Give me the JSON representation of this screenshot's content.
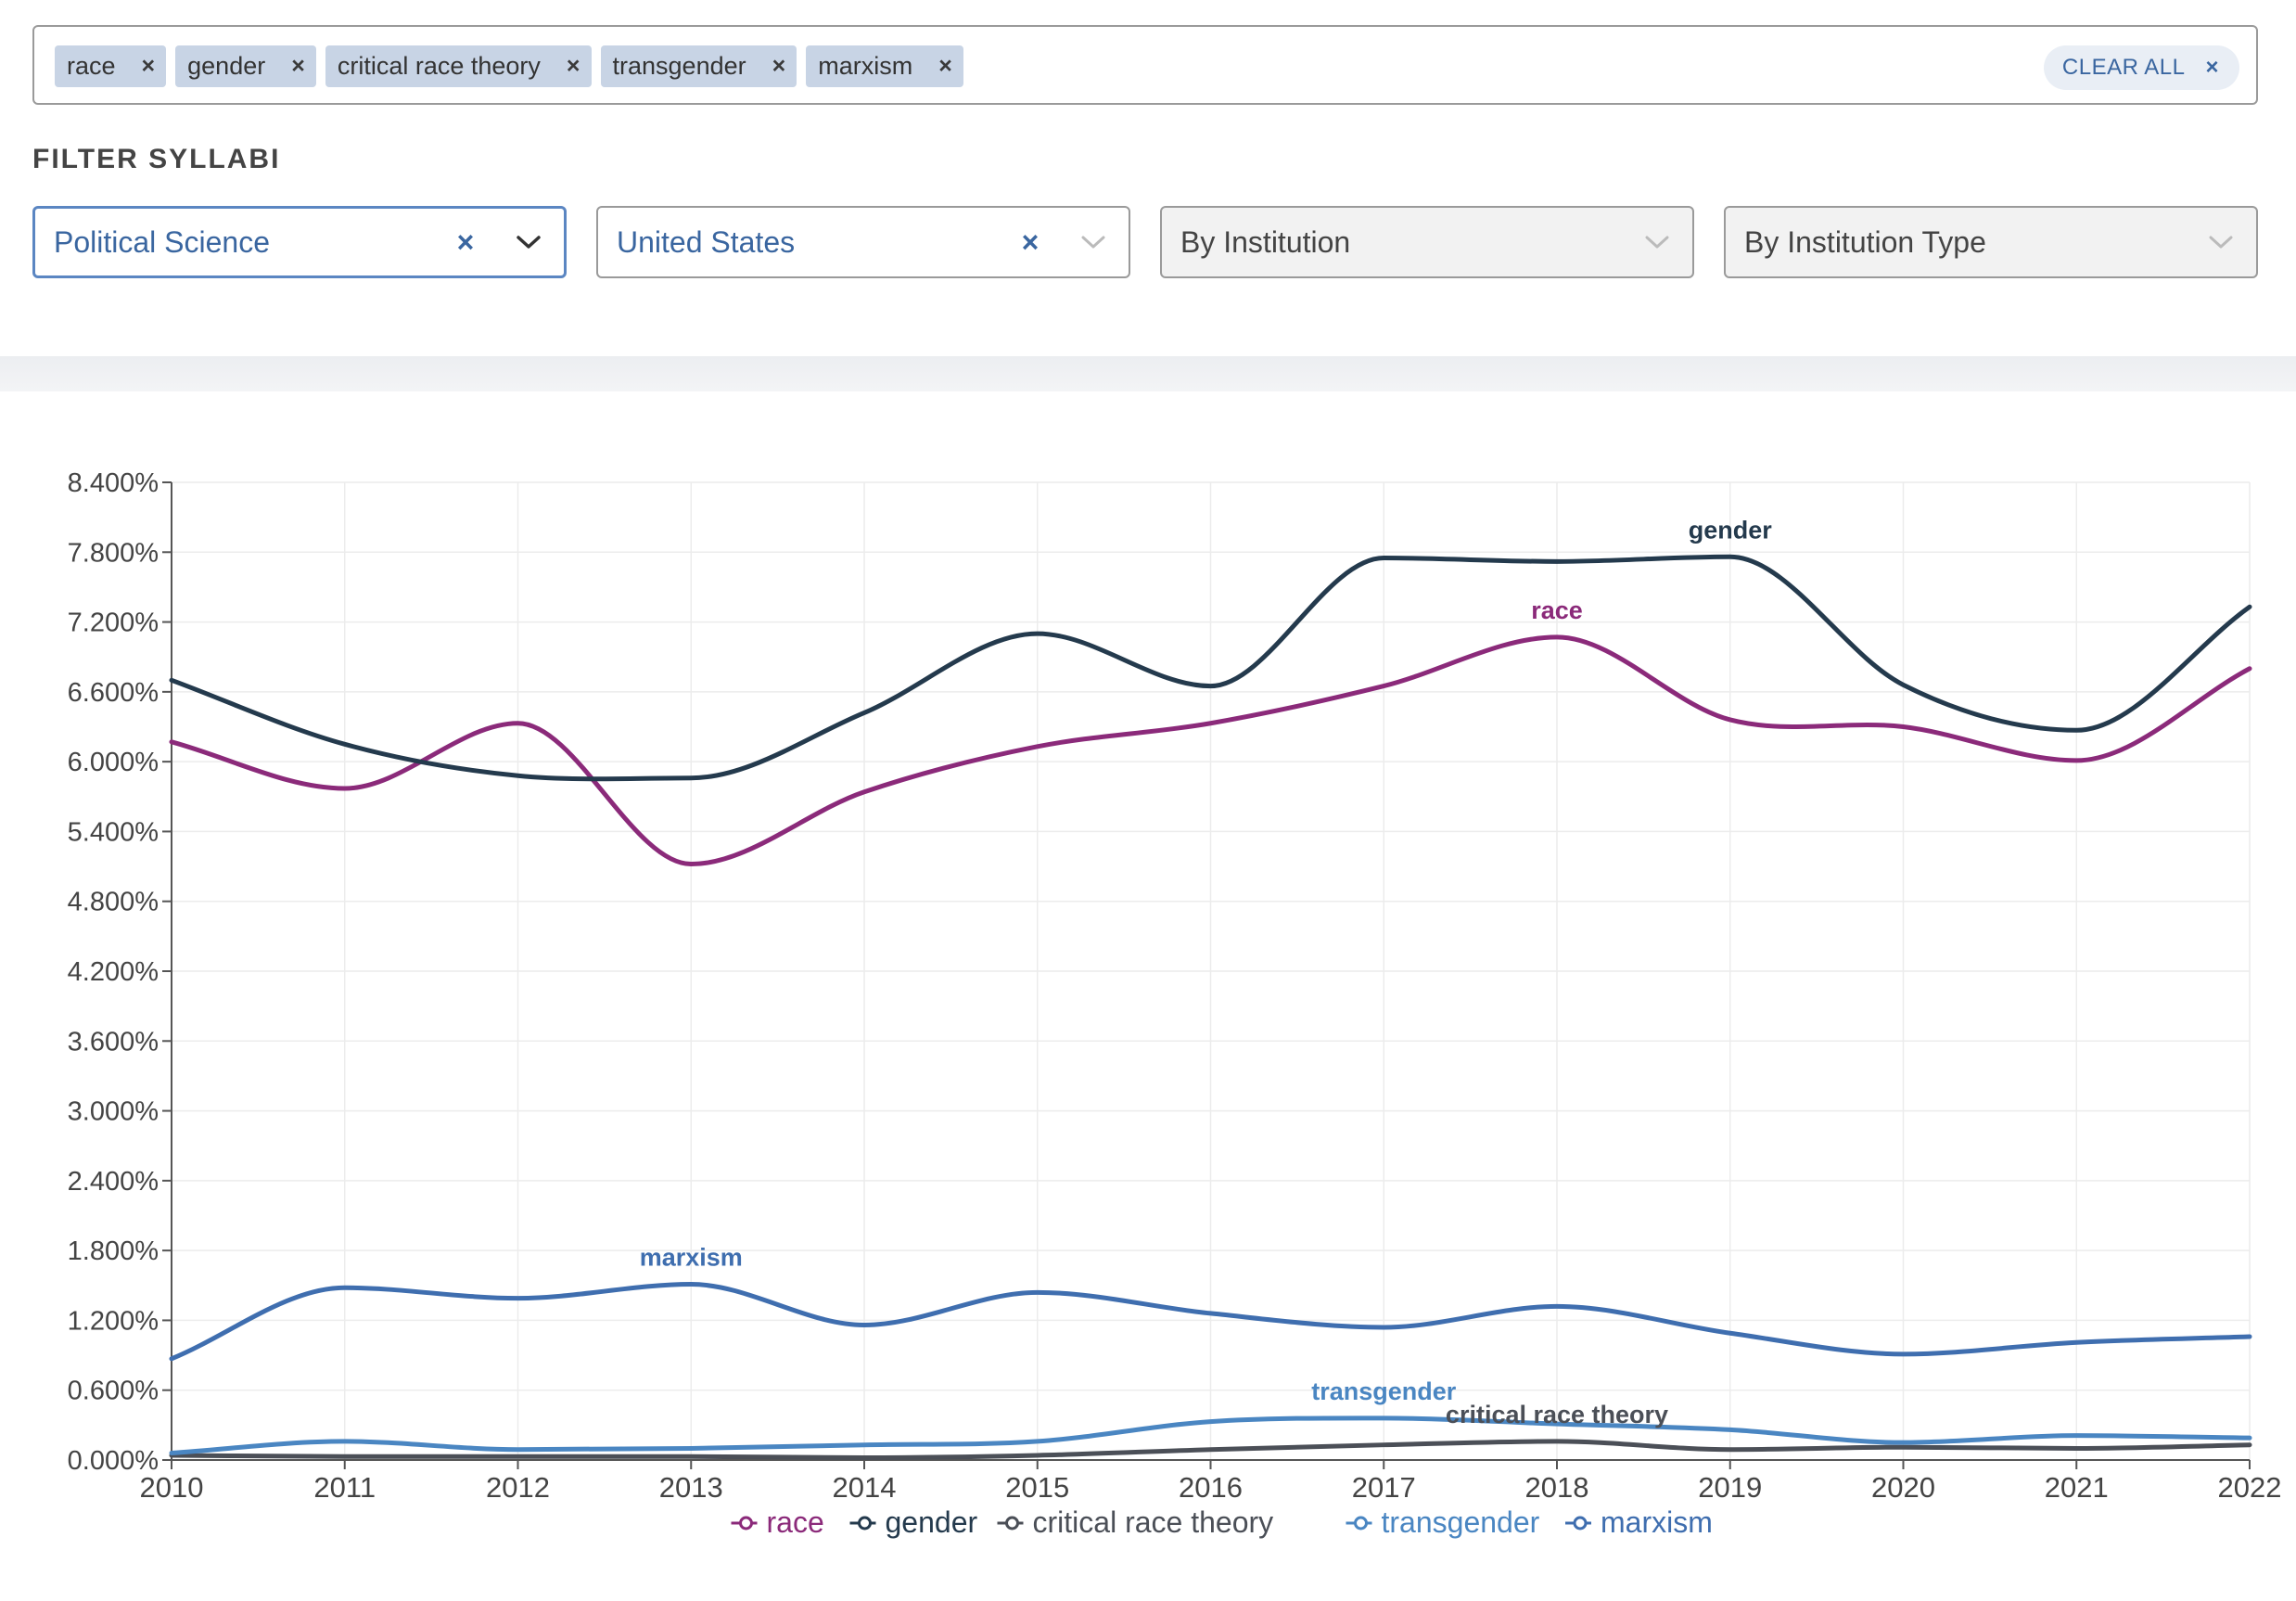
{
  "search": {
    "tags": [
      {
        "label": "race"
      },
      {
        "label": "gender"
      },
      {
        "label": "critical race theory"
      },
      {
        "label": "transgender"
      },
      {
        "label": "marxism"
      }
    ],
    "remove_glyph": "×",
    "clear_all_label": "CLEAR ALL"
  },
  "filters": {
    "title": "FILTER SYLLABI",
    "field": {
      "value": "Political Science"
    },
    "country": {
      "value": "United States"
    },
    "institution": {
      "placeholder": "By Institution"
    },
    "institution_type": {
      "placeholder": "By Institution Type"
    },
    "clear_glyph": "×"
  },
  "colors": {
    "race": "#8b2a7a",
    "gender": "#243a4d",
    "critical race theory": "#4b4f57",
    "transgender": "#4a86c2",
    "marxism": "#3f6eaf",
    "accent": "#3a66a0"
  },
  "chart_data": {
    "type": "line",
    "x": [
      "2010",
      "2011",
      "2012",
      "2013",
      "2014",
      "2015",
      "2016",
      "2017",
      "2018",
      "2019",
      "2020",
      "2021",
      "2022"
    ],
    "ylim": [
      0,
      8.4
    ],
    "yticks": [
      "8.400%",
      "7.800%",
      "7.200%",
      "6.600%",
      "6.000%",
      "5.400%",
      "4.800%",
      "4.200%",
      "3.600%",
      "3.000%",
      "2.400%",
      "1.800%",
      "1.200%",
      "0.600%",
      "0.000%"
    ],
    "grid": true,
    "legend_position": "bottom",
    "series": [
      {
        "name": "race",
        "values": [
          6.17,
          5.77,
          6.33,
          5.12,
          5.74,
          6.13,
          6.33,
          6.65,
          7.07,
          6.36,
          6.3,
          6.01,
          6.8
        ]
      },
      {
        "name": "gender",
        "values": [
          6.7,
          6.15,
          5.88,
          5.86,
          6.42,
          7.1,
          6.65,
          7.75,
          7.72,
          7.76,
          6.66,
          6.27,
          7.33
        ]
      },
      {
        "name": "critical race theory",
        "values": [
          0.04,
          0.03,
          0.03,
          0.03,
          0.02,
          0.04,
          0.09,
          0.13,
          0.16,
          0.09,
          0.11,
          0.1,
          0.13
        ]
      },
      {
        "name": "transgender",
        "values": [
          0.06,
          0.16,
          0.09,
          0.1,
          0.13,
          0.16,
          0.33,
          0.36,
          0.31,
          0.26,
          0.15,
          0.21,
          0.19
        ]
      },
      {
        "name": "marxism",
        "values": [
          0.87,
          1.48,
          1.39,
          1.51,
          1.16,
          1.44,
          1.26,
          1.14,
          1.32,
          1.09,
          0.91,
          1.01,
          1.06
        ]
      }
    ],
    "line_labels": [
      {
        "series": "gender",
        "text": "gender",
        "at_x": "2019"
      },
      {
        "series": "race",
        "text": "race",
        "at_x": "2018"
      },
      {
        "series": "marxism",
        "text": "marxism",
        "at_x": "2013"
      },
      {
        "series": "transgender",
        "text": "transgender",
        "at_x": "2017"
      },
      {
        "series": "critical race theory",
        "text": "critical race theory",
        "at_x": "2018"
      }
    ]
  }
}
